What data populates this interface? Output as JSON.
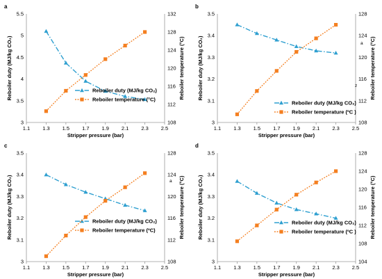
{
  "colors": {
    "duty": "#2e9fd0",
    "temp": "#f47f20"
  },
  "chart_data": [
    {
      "panel": "a",
      "type": "line",
      "xlabel": "Stripper pressure (bar)",
      "ylabel": "Reboiler duty (MJ/kg CO₂)",
      "y2label": "Reboiler temperature (°C)",
      "xlim": [
        1.1,
        2.5
      ],
      "ylim": [
        3,
        5.5
      ],
      "y2lim": [
        108,
        132
      ],
      "xticks": [
        "1.1",
        "1.3",
        "1.5",
        "1.7",
        "1.9",
        "2.1",
        "2.3",
        "2.5"
      ],
      "yticks": [
        "3",
        "3.5",
        "4",
        "4.5",
        "5",
        "5.5"
      ],
      "y2ticks": [
        "108",
        "112",
        "116",
        "120",
        "124",
        "128",
        "132"
      ],
      "legend_position": "center-right",
      "series": [
        {
          "name": "Reboiler duty (MJ/kg CO₂)",
          "axis": "left",
          "marker": "triangle",
          "line": "dash-dot",
          "x": [
            1.3,
            1.5,
            1.7,
            1.9,
            2.1,
            2.3
          ],
          "y": [
            5.1,
            4.37,
            3.95,
            3.72,
            3.6,
            3.53
          ]
        },
        {
          "name": "Reboiler temperature (°C)",
          "axis": "right",
          "marker": "square",
          "line": "dotted",
          "x": [
            1.3,
            1.5,
            1.7,
            1.9,
            2.1,
            2.3
          ],
          "y": [
            110.5,
            115,
            118.5,
            122,
            125,
            128
          ]
        }
      ]
    },
    {
      "panel": "b",
      "type": "line",
      "xlabel": "Stripper pressure (bar)",
      "ylabel": "Reboiler duty (MJ/kg CO₂)",
      "y2label": "Reboiler temperature (°C)",
      "xlim": [
        1.1,
        2.5
      ],
      "ylim": [
        3,
        3.5
      ],
      "y2lim": [
        108,
        128
      ],
      "xticks": [
        "1.1",
        "1.3",
        "1.5",
        "1.7",
        "1.9",
        "2.1",
        "2.3",
        "2.5"
      ],
      "yticks": [
        "3",
        "3.1",
        "3.2",
        "3.3",
        "3.4",
        "3.5"
      ],
      "y2ticks": [
        "108",
        "112",
        "116",
        "120",
        "124",
        "128"
      ],
      "legend_position": "lower-right",
      "series": [
        {
          "name": "Reboiler duty (MJ/kg CO₂)",
          "axis": "left",
          "marker": "triangle",
          "line": "dash-dot",
          "x": [
            1.3,
            1.5,
            1.7,
            1.9,
            2.1,
            2.3
          ],
          "y": [
            3.45,
            3.41,
            3.38,
            3.35,
            3.33,
            3.32
          ]
        },
        {
          "name": "Reboiler temperature (ºC )",
          "axis": "right",
          "marker": "square",
          "line": "dotted",
          "x": [
            1.3,
            1.5,
            1.7,
            1.9,
            2.1,
            2.3
          ],
          "y": [
            109.5,
            113.8,
            117.5,
            121,
            123.5,
            126
          ]
        }
      ]
    },
    {
      "panel": "c",
      "type": "line",
      "xlabel": "Stripper pressure (bar)",
      "ylabel": "Reboiler duty (MJ/kg CO₂)",
      "y2label": "Reboiler temperature (°C)",
      "xlim": [
        1.1,
        2.5
      ],
      "ylim": [
        3,
        3.5
      ],
      "y2lim": [
        108,
        128
      ],
      "xticks": [
        "1.1",
        "1.3",
        "1.5",
        "1.7",
        "1.9",
        "2.1",
        "2.3",
        "2.5"
      ],
      "yticks": [
        "3",
        "3.1",
        "3.2",
        "3.3",
        "3.4",
        "3.5"
      ],
      "y2ticks": [
        "108",
        "112",
        "116",
        "120",
        "124",
        "128"
      ],
      "legend_position": "center-right",
      "series": [
        {
          "name": "Reboiler duty (MJ/kg CO₂)",
          "axis": "left",
          "marker": "triangle",
          "line": "dash-dot",
          "x": [
            1.3,
            1.5,
            1.7,
            1.9,
            2.1,
            2.3
          ],
          "y": [
            3.4,
            3.355,
            3.32,
            3.29,
            3.26,
            3.235
          ]
        },
        {
          "name": "Reboiler temperature (ºC)",
          "axis": "right",
          "marker": "square",
          "line": "dotted",
          "x": [
            1.3,
            1.5,
            1.7,
            1.9,
            2.1,
            2.3
          ],
          "y": [
            109,
            112.8,
            116.2,
            119.2,
            121.7,
            124.3
          ]
        }
      ]
    },
    {
      "panel": "d",
      "type": "line",
      "xlabel": "Stripper pressure (bar)",
      "ylabel": "Reboiler duty (MJ/kg CO₂)",
      "y2label": "Reboiler temperature (°C)",
      "xlim": [
        1.1,
        2.5
      ],
      "ylim": [
        3,
        3.5
      ],
      "y2lim": [
        104,
        128
      ],
      "xticks": [
        "1.1",
        "1.3",
        "1.5",
        "1.7",
        "1.9",
        "2.1",
        "2.3",
        "2.5"
      ],
      "yticks": [
        "3",
        "3.1",
        "3.2",
        "3.3",
        "3.4",
        "3.5"
      ],
      "y2ticks": [
        "104",
        "108",
        "112",
        "116",
        "120",
        "124",
        "128"
      ],
      "legend_position": "center-right",
      "series": [
        {
          "name": "Reboiler duty (MJ/kg CO₂)",
          "axis": "left",
          "marker": "triangle",
          "line": "dash-dot",
          "x": [
            1.3,
            1.5,
            1.7,
            1.9,
            2.1,
            2.3
          ],
          "y": [
            3.37,
            3.315,
            3.27,
            3.24,
            3.22,
            3.2
          ]
        },
        {
          "name": "Reboiler temperature (ºC )",
          "axis": "right",
          "marker": "square",
          "line": "dotted",
          "x": [
            1.3,
            1.5,
            1.7,
            1.9,
            2.1,
            2.3
          ],
          "y": [
            108.5,
            112,
            115.5,
            118.8,
            121.5,
            124
          ]
        }
      ]
    }
  ],
  "stray_marks": {
    "b_mid": "a",
    "b_low": "z",
    "c_mid": "a"
  }
}
